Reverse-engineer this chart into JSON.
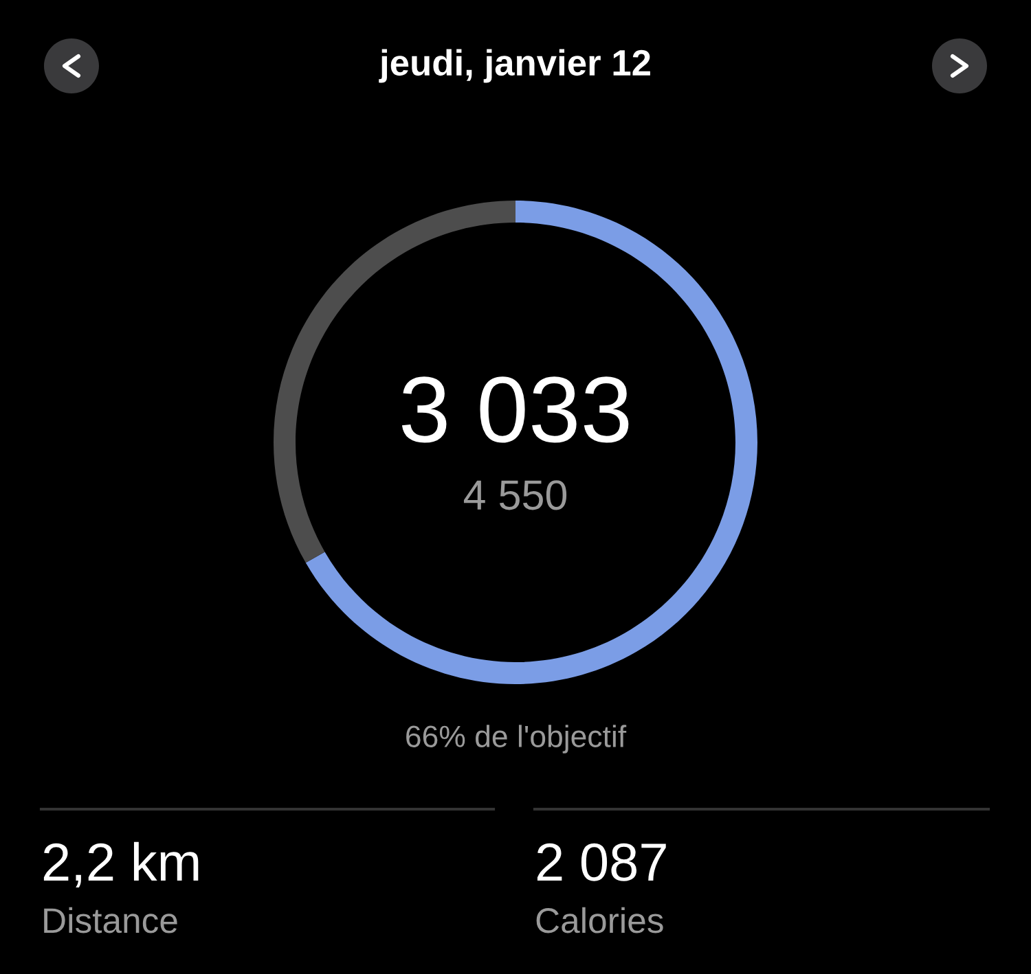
{
  "chart_data": {
    "type": "donut",
    "title": "jeudi, janvier 12",
    "categories": [
      null,
      null
    ],
    "values": [
      66.7,
      33.3
    ],
    "colors": [
      "#7b9de6",
      "#4d4d4d"
    ],
    "annotations": [
      "3 033",
      "4 550",
      "66% de l'objectif",
      "2,2 km",
      "Distance",
      "2 087",
      "Calories"
    ]
  }
}
